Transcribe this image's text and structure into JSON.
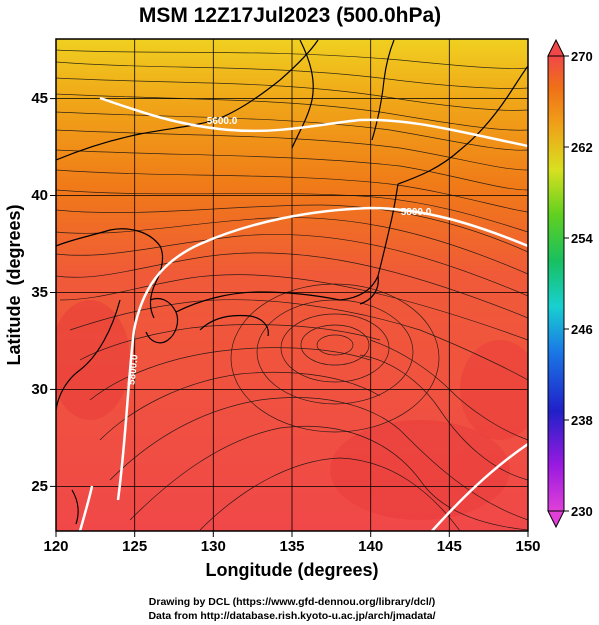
{
  "title": "MSM 12Z17Jul2023 (500.0hPa)",
  "xaxis": {
    "label": "Longitude (degrees)",
    "range": [
      120,
      150
    ],
    "ticks": [
      "120",
      "125",
      "130",
      "135",
      "140",
      "145",
      "150"
    ]
  },
  "yaxis": {
    "label": "Latitude  (degrees)",
    "range": [
      22.5,
      48
    ],
    "ticks": [
      "25",
      "30",
      "35",
      "40",
      "45"
    ]
  },
  "colorbar": {
    "range": [
      230,
      270
    ],
    "ticks": [
      "270",
      "262",
      "254",
      "246",
      "238",
      "230"
    ],
    "colors": [
      "#e040d8",
      "#9a1ae0",
      "#2020c8",
      "#1a78e6",
      "#18d0d0",
      "#18c060",
      "#60d020",
      "#d8e020",
      "#f0a018",
      "#f07018",
      "#f04848"
    ]
  },
  "contours": [
    {
      "label": "5600.0"
    },
    {
      "label": "5800.0"
    },
    {
      "label": "5900.0"
    }
  ],
  "credits": {
    "line1": "Drawing by DCL (https://www.gfd-dennou.org/library/dcl/)",
    "line2": "Data from http://database.rish.kyoto-u.ac.jp/arch/jmadata/"
  }
}
